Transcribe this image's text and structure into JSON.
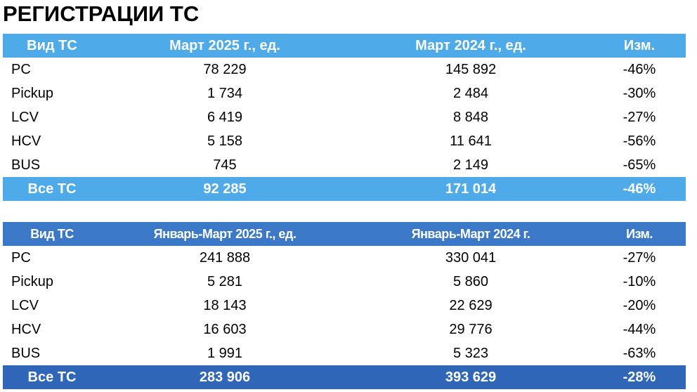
{
  "title": "РЕГИСТРАЦИИ ТС",
  "tables": [
    {
      "header": [
        "Вид ТС",
        "Март 2025 г., ед.",
        "Март 2024 г., ед.",
        "Изм."
      ],
      "rows": [
        [
          "PC",
          "78 229",
          "145 892",
          "-46%"
        ],
        [
          "Pickup",
          "1 734",
          "2 484",
          "-30%"
        ],
        [
          "LCV",
          "6 419",
          "8 848",
          "-27%"
        ],
        [
          "HCV",
          "5 158",
          "11 641",
          "-56%"
        ],
        [
          "BUS",
          "745",
          "2 149",
          "-65%"
        ]
      ],
      "total": [
        "Все ТС",
        "92 285",
        "171 014",
        "-46%"
      ]
    },
    {
      "header": [
        "Вид ТС",
        "Январь-Март 2025 г., ед.",
        "Январь-Март 2024 г.",
        "Изм."
      ],
      "rows": [
        [
          "PC",
          "241 888",
          "330 041",
          "-27%"
        ],
        [
          "Pickup",
          "5 281",
          "5 860",
          "-10%"
        ],
        [
          "LCV",
          "18 143",
          "22 629",
          "-20%"
        ],
        [
          "HCV",
          "16 603",
          "29 776",
          "-44%"
        ],
        [
          "BUS",
          "1 991",
          "5 323",
          "-63%"
        ]
      ],
      "total": [
        "Все ТС",
        "283 906",
        "393 629",
        "-28%"
      ]
    }
  ]
}
